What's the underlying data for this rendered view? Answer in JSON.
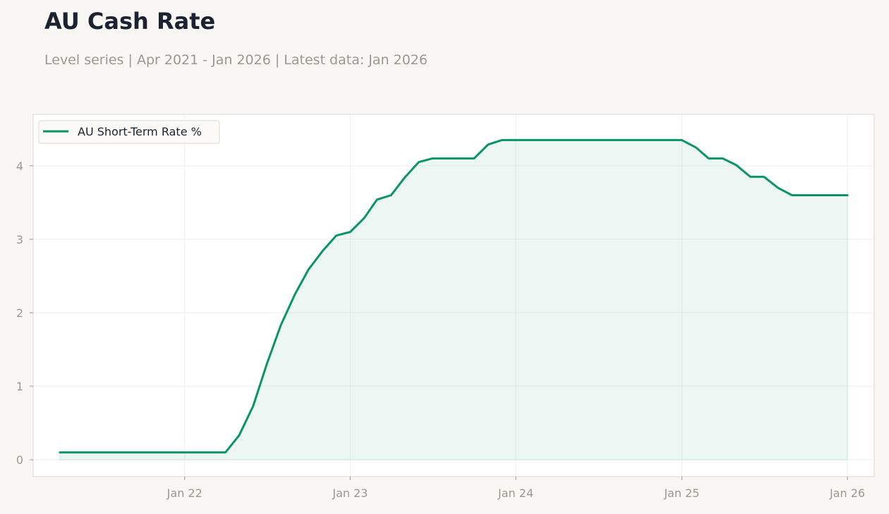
{
  "header": {
    "title": "AU Cash Rate",
    "subtitle": "Level series | Apr 2021 - Jan 2026 | Latest data: Jan 2026"
  },
  "colors": {
    "line": "#0a9467",
    "fill": "#0a9467",
    "grid": "#eeeeee",
    "frame": "#dddad3",
    "plot_bg": "#ffffff",
    "page_bg": "#f8f7f4"
  },
  "chart_data": {
    "type": "area",
    "title": "AU Cash Rate",
    "subtitle": "Level series | Apr 2021 - Jan 2026 | Latest data: Jan 2026",
    "xlabel": "",
    "ylabel": "",
    "x_type": "date",
    "xlim": [
      "2021-02-01",
      "2026-03-01"
    ],
    "ylim": [
      -0.23,
      4.7
    ],
    "x_ticks": [
      {
        "date": "2022-01-01",
        "label": "Jan 22"
      },
      {
        "date": "2023-01-01",
        "label": "Jan 23"
      },
      {
        "date": "2024-01-01",
        "label": "Jan 24"
      },
      {
        "date": "2025-01-01",
        "label": "Jan 25"
      },
      {
        "date": "2026-01-01",
        "label": "Jan 26"
      }
    ],
    "y_ticks": [
      0,
      1,
      2,
      3,
      4
    ],
    "grid": true,
    "legend": {
      "position": "top-left"
    },
    "series": [
      {
        "name": "AU Short-Term Rate %",
        "x": [
          "2021-04",
          "2021-05",
          "2021-06",
          "2021-07",
          "2021-08",
          "2021-09",
          "2021-10",
          "2021-11",
          "2021-12",
          "2022-01",
          "2022-02",
          "2022-03",
          "2022-04",
          "2022-05",
          "2022-06",
          "2022-07",
          "2022-08",
          "2022-09",
          "2022-10",
          "2022-11",
          "2022-12",
          "2023-01",
          "2023-02",
          "2023-03",
          "2023-04",
          "2023-05",
          "2023-06",
          "2023-07",
          "2023-08",
          "2023-09",
          "2023-10",
          "2023-11",
          "2023-12",
          "2024-01",
          "2024-02",
          "2024-03",
          "2024-04",
          "2024-05",
          "2024-06",
          "2024-07",
          "2024-08",
          "2024-09",
          "2024-10",
          "2024-11",
          "2024-12",
          "2025-01",
          "2025-02",
          "2025-03",
          "2025-04",
          "2025-05",
          "2025-06",
          "2025-07",
          "2025-08",
          "2025-09",
          "2025-10",
          "2025-11",
          "2025-12",
          "2026-01"
        ],
        "values": [
          0.1,
          0.1,
          0.1,
          0.1,
          0.1,
          0.1,
          0.1,
          0.1,
          0.1,
          0.1,
          0.1,
          0.1,
          0.1,
          0.33,
          0.73,
          1.3,
          1.83,
          2.25,
          2.59,
          2.84,
          3.05,
          3.1,
          3.29,
          3.54,
          3.6,
          3.84,
          4.05,
          4.1,
          4.1,
          4.1,
          4.1,
          4.29,
          4.35,
          4.35,
          4.35,
          4.35,
          4.35,
          4.35,
          4.35,
          4.35,
          4.35,
          4.35,
          4.35,
          4.35,
          4.35,
          4.35,
          4.25,
          4.1,
          4.1,
          4.01,
          3.85,
          3.85,
          3.7,
          3.6,
          3.6,
          3.6,
          3.6,
          3.6
        ]
      }
    ]
  }
}
